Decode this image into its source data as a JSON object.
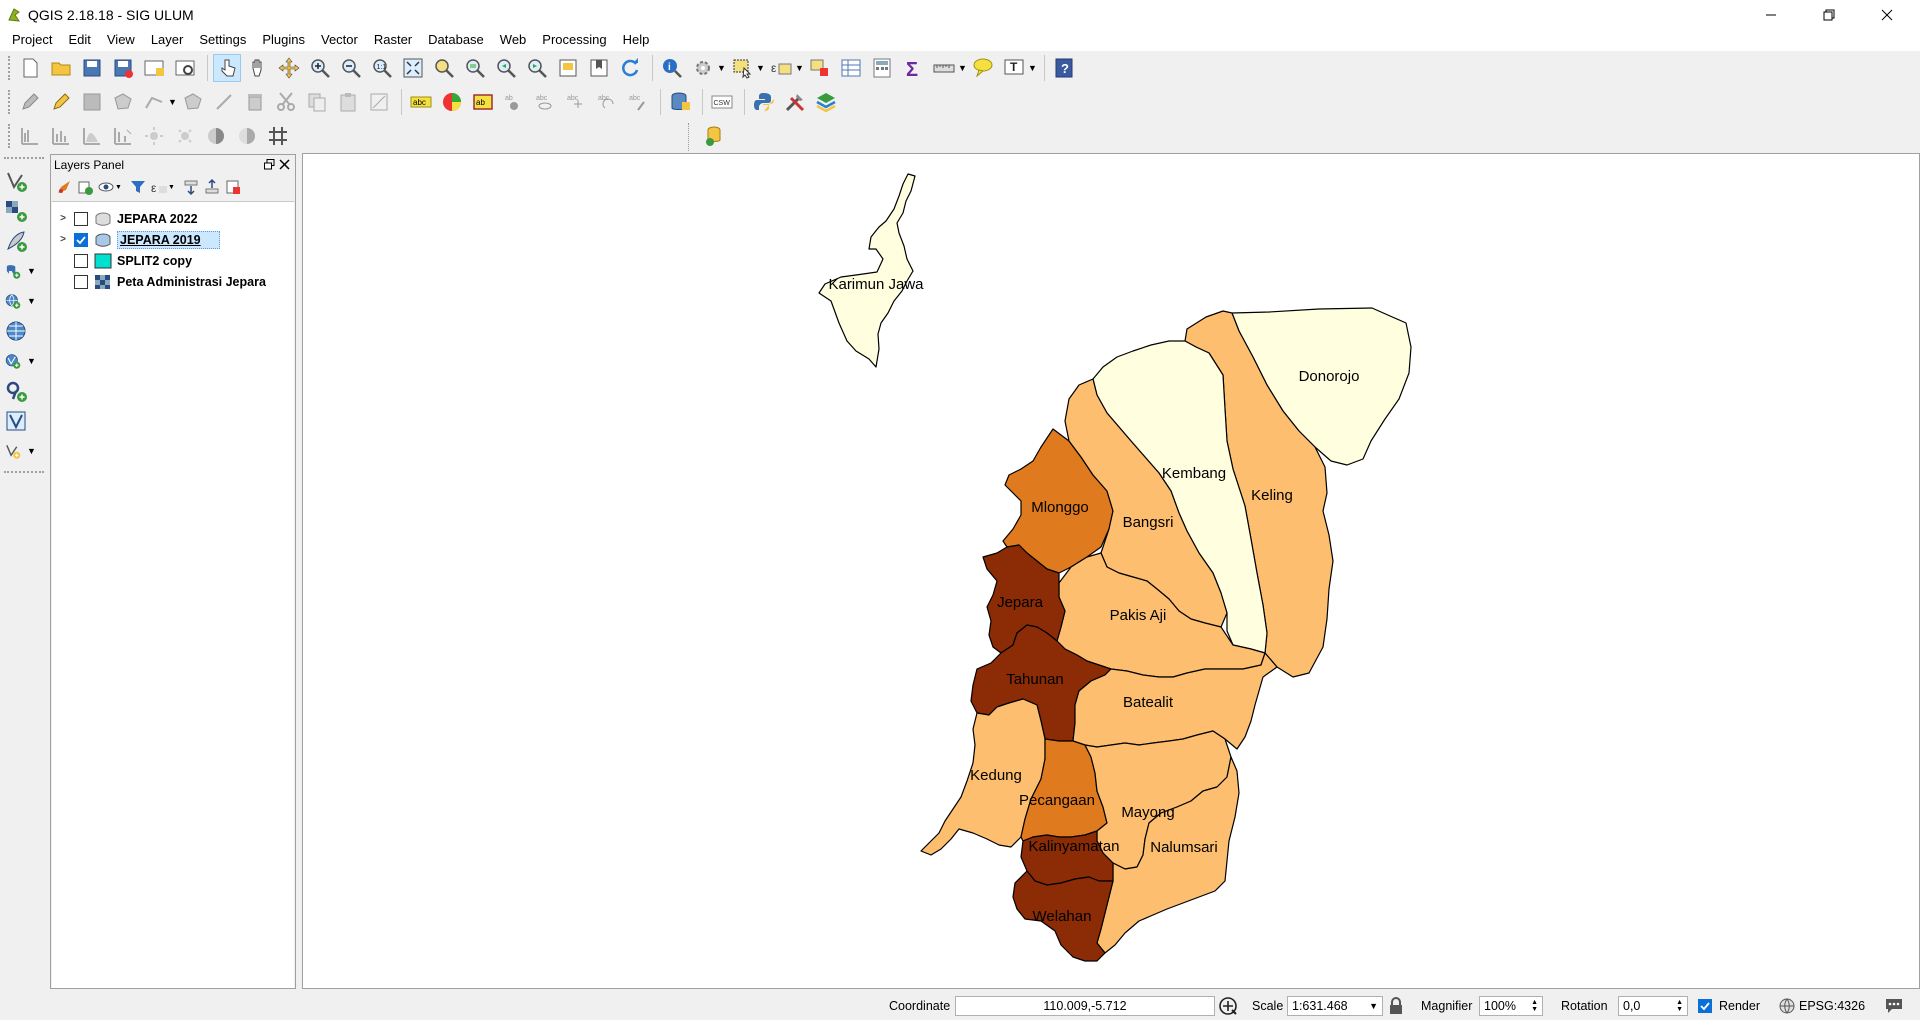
{
  "window": {
    "title": "QGIS 2.18.18 - SIG ULUM"
  },
  "menu": [
    "Project",
    "Edit",
    "View",
    "Layer",
    "Settings",
    "Plugins",
    "Vector",
    "Raster",
    "Database",
    "Web",
    "Processing",
    "Help"
  ],
  "layers_panel": {
    "title": "Layers Panel",
    "layers": [
      {
        "name": "JEPARA 2022",
        "checked": false,
        "expandable": true,
        "selected": false
      },
      {
        "name": "JEPARA 2019",
        "checked": true,
        "expandable": true,
        "selected": true
      },
      {
        "name": "SPLIT2 copy",
        "checked": false,
        "expandable": false,
        "selected": false
      },
      {
        "name": "Peta Administrasi Jepara",
        "checked": false,
        "expandable": false,
        "selected": false
      }
    ]
  },
  "toolbar": {
    "csw_label": "CSW",
    "abc_label": "abc"
  },
  "map": {
    "colors": {
      "c1": "#ffffe0",
      "c2": "#fdbf6f",
      "c3": "#e07a1f",
      "c4": "#8b2c06",
      "outline": "#000000"
    },
    "regions": [
      {
        "name": "Karimun Jawa",
        "class": "c1"
      },
      {
        "name": "Donorojo",
        "class": "c1"
      },
      {
        "name": "Kembang",
        "class": "c1"
      },
      {
        "name": "Keling",
        "class": "c2"
      },
      {
        "name": "Mlonggo",
        "class": "c3"
      },
      {
        "name": "Bangsri",
        "class": "c2"
      },
      {
        "name": "Jepara",
        "class": "c4"
      },
      {
        "name": "Pakis Aji",
        "class": "c2"
      },
      {
        "name": "Tahunan",
        "class": "c4"
      },
      {
        "name": "Batealit",
        "class": "c2"
      },
      {
        "name": "Kedung",
        "class": "c2"
      },
      {
        "name": "Pecangaan",
        "class": "c3"
      },
      {
        "name": "Mayong",
        "class": "c2"
      },
      {
        "name": "Kalinyamatan",
        "class": "c4"
      },
      {
        "name": "Nalumsari",
        "class": "c2"
      },
      {
        "name": "Welahan",
        "class": "c4"
      }
    ]
  },
  "status": {
    "coordinate_label": "Coordinate",
    "coordinate_value": "110.009,-5.712",
    "scale_label": "Scale",
    "scale_value": "1:631.468",
    "magnifier_label": "Magnifier",
    "magnifier_value": "100%",
    "rotation_label": "Rotation",
    "rotation_value": "0,0",
    "render_label": "Render",
    "render_checked": true,
    "crs": "EPSG:4326"
  }
}
